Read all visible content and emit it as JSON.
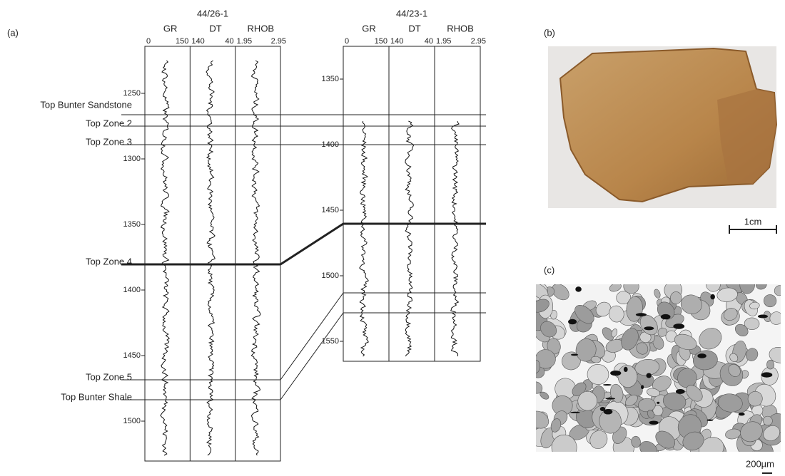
{
  "panel_a": {
    "label": "(a)",
    "wells": [
      {
        "name": "44/26-1",
        "tracks": [
          {
            "name": "GR",
            "min": "0",
            "max": "150"
          },
          {
            "name": "DT",
            "min": "140",
            "max": "40"
          },
          {
            "name": "RHOB",
            "min": "1.95",
            "max": "2.95"
          }
        ],
        "depth_ticks": [
          1250,
          1300,
          1350,
          1400,
          1450,
          1500
        ]
      },
      {
        "name": "44/23-1",
        "tracks": [
          {
            "name": "GR",
            "min": "0",
            "max": "150"
          },
          {
            "name": "DT",
            "min": "140",
            "max": "40"
          },
          {
            "name": "RHOB",
            "min": "1.95",
            "max": "2.95"
          }
        ],
        "depth_ticks": [
          1350,
          1400,
          1450,
          1500,
          1550
        ]
      }
    ],
    "tops": [
      "Top Bunter Sandstone",
      "Top Zone 2",
      "Top Zone 3",
      "Top Zone 4",
      "Top Zone 5",
      "Top Bunter Shale"
    ]
  },
  "panel_b": {
    "label": "(b)",
    "scale": "1cm"
  },
  "panel_c": {
    "label": "(c)",
    "scale": "200µm"
  }
}
